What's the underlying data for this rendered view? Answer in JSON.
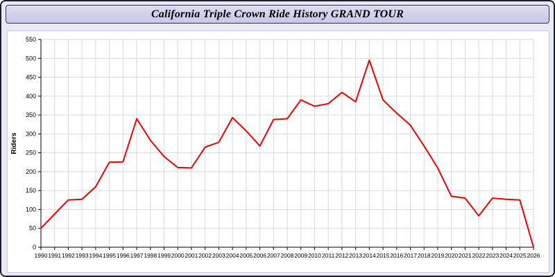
{
  "window": {
    "title": "California Triple Crown Ride History GRAND TOUR"
  },
  "chart_data": {
    "type": "line",
    "title": "California Triple Crown Ride History GRAND TOUR",
    "xlabel": "",
    "ylabel": "Riders",
    "x": [
      1990,
      1991,
      1992,
      1993,
      1994,
      1995,
      1996,
      1997,
      1998,
      1999,
      2000,
      2001,
      2002,
      2003,
      2004,
      2005,
      2006,
      2007,
      2008,
      2009,
      2010,
      2011,
      2012,
      2013,
      2014,
      2015,
      2016,
      2017,
      2018,
      2019,
      2020,
      2021,
      2022,
      2023,
      2024,
      2025,
      2026
    ],
    "series": [
      {
        "name": "Riders",
        "values": [
          50,
          88,
          125,
          127,
          160,
          225,
          226,
          340,
          283,
          240,
          211,
          210,
          265,
          278,
          343,
          308,
          268,
          338,
          340,
          390,
          373,
          380,
          410,
          385,
          495,
          390,
          355,
          323,
          268,
          210,
          135,
          130,
          83,
          130,
          127,
          125,
          0
        ]
      }
    ],
    "ylim": [
      0,
      550
    ],
    "ytick_step": 50,
    "grid": true,
    "legend": "none",
    "line_color": "#ee0000",
    "grid_color": "#d9d9d9",
    "axis_color": "#000000"
  }
}
